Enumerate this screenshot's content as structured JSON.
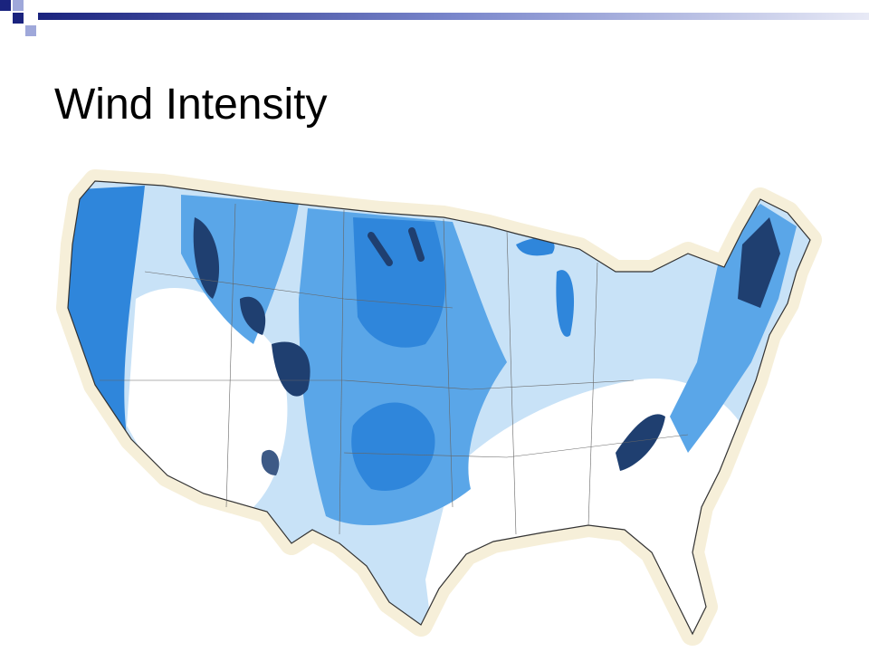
{
  "title": "Wind Intensity"
}
